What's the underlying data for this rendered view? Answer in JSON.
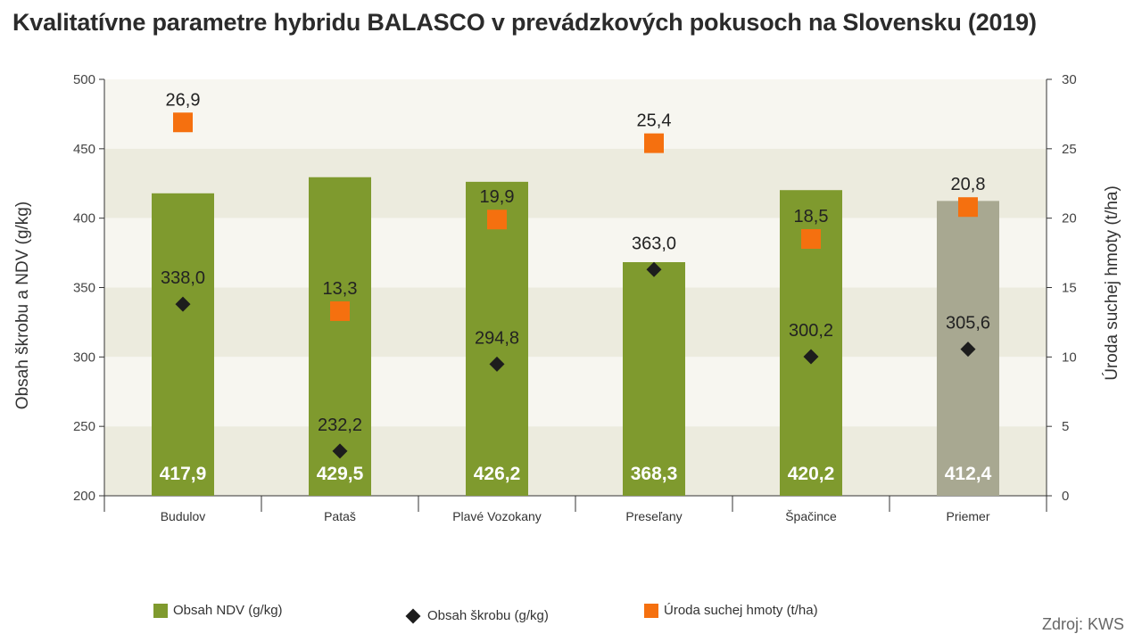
{
  "title": "Kvalitatívne parametre hybridu BALASCO v prevádzkových pokusoch na Slovensku (2019)",
  "source": "Zdroj: KWS",
  "colors": {
    "bar": "#7f9a2e",
    "bar_average": "#a8a891",
    "starch": "#1d1d1d",
    "yield": "#f5700f",
    "band_light": "#f7f6f0",
    "band_dark": "#ecebde"
  },
  "legend": {
    "ndv": "Obsah NDV (g/kg)",
    "starch": "Obsah škrobu (g/kg)",
    "yield": "Úroda suchej hmoty (t/ha)"
  },
  "chart_data": {
    "type": "bar",
    "title": "Kvalitatívne parametre hybridu BALASCO v prevádzkových pokusoch na Slovensku (2019)",
    "categories": [
      "Budulov",
      "Pataš",
      "Plavé Vozokany",
      "Preseľany",
      "Špačince",
      "Priemer"
    ],
    "ylabel": "Obsah škrobu a NDV (g/kg)",
    "ylabel_right": "Úroda suchej hmoty (t/ha)",
    "ylim": [
      200,
      500
    ],
    "yticks": [
      "500",
      "450",
      "400",
      "350",
      "300",
      "250",
      "200"
    ],
    "ylim_right": [
      0,
      30
    ],
    "yticks_right": [
      "30",
      "25",
      "20",
      "15",
      "10",
      "5",
      "0"
    ],
    "series": [
      {
        "name": "Obsah NDV (g/kg)",
        "type": "bar",
        "axis": "left",
        "values": [
          417.9,
          429.5,
          426.2,
          368.3,
          420.2,
          412.4
        ],
        "labels": [
          "417,9",
          "429,5",
          "426,2",
          "368,3",
          "420,2",
          "412,4"
        ]
      },
      {
        "name": "Obsah škrobu (g/kg)",
        "type": "scatter",
        "marker": "diamond",
        "axis": "left",
        "values": [
          338.0,
          232.2,
          294.8,
          363.0,
          300.2,
          305.6
        ],
        "labels": [
          "338,0",
          "232,2",
          "294,8",
          "363,0",
          "300,2",
          "305,6"
        ]
      },
      {
        "name": "Úroda suchej hmoty (t/ha)",
        "type": "scatter",
        "marker": "square",
        "axis": "right",
        "values": [
          26.9,
          13.3,
          19.9,
          25.4,
          18.5,
          20.8
        ],
        "labels": [
          "26,9",
          "13,3",
          "19,9",
          "25,4",
          "18,5",
          "20,8"
        ]
      }
    ]
  }
}
